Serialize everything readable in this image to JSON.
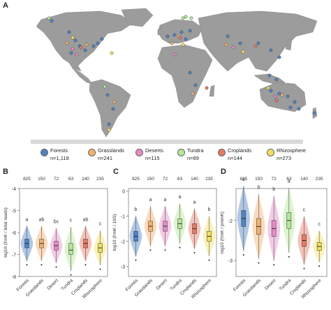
{
  "panels": {
    "A": "A",
    "B": "B",
    "C": "C",
    "D": "D"
  },
  "legend": [
    {
      "name": "Forests",
      "n": "n=1,118",
      "color": "#4f83c3"
    },
    {
      "name": "Grasslands",
      "n": "n=241",
      "color": "#f2b06e"
    },
    {
      "name": "Deserts",
      "n": "n=115",
      "color": "#e48cc6"
    },
    {
      "name": "Tundra",
      "n": "n=89",
      "color": "#b5e69a"
    },
    {
      "name": "Croplands",
      "n": "n=144",
      "color": "#e67a67"
    },
    {
      "name": "Rhizosphere",
      "n": "n=273",
      "color": "#f3df5e"
    }
  ],
  "chart_data": [
    {
      "type": "box",
      "panel": "B",
      "ylabel": "log10 (frmK / total reads)",
      "ylim": [
        -8,
        -4
      ],
      "yticks": [
        -8,
        -7,
        -6,
        -5,
        -4
      ],
      "categories": [
        "Forests",
        "Grasslands",
        "Desert",
        "Tundra",
        "Croplands",
        "Rhizosphere"
      ],
      "counts": [
        "825",
        "150",
        "72",
        "63",
        "140",
        "235"
      ],
      "letters": [
        "a",
        "ab",
        "bc",
        "c",
        "ab",
        "c"
      ],
      "medians": [
        -6.5,
        -6.5,
        -6.6,
        -6.8,
        -6.5,
        -6.7
      ],
      "q1": [
        -6.7,
        -6.7,
        -6.8,
        -7.0,
        -6.7,
        -6.9
      ],
      "q3": [
        -6.3,
        -6.3,
        -6.4,
        -6.5,
        -6.3,
        -6.5
      ]
    },
    {
      "type": "box",
      "panel": "C",
      "ylabel": "log10 (frmK / 16S)",
      "ylim": [
        -3.4,
        0.1
      ],
      "yticks": [
        -3,
        -2,
        -1,
        0
      ],
      "categories": [
        "Forests",
        "Grasslands",
        "Desert",
        "Tundra",
        "Croplands",
        "Rhizosphere"
      ],
      "counts": [
        "825",
        "150",
        "72",
        "63",
        "140",
        "235"
      ],
      "letters": [
        "b",
        "a",
        "a",
        "a",
        "a",
        "b"
      ],
      "medians": [
        -1.8,
        -1.4,
        -1.4,
        -1.3,
        -1.5,
        -1.8
      ],
      "q1": [
        -2.0,
        -1.6,
        -1.6,
        -1.5,
        -1.7,
        -2.0
      ],
      "q3": [
        -1.6,
        -1.2,
        -1.2,
        -1.1,
        -1.3,
        -1.6
      ]
    },
    {
      "type": "box",
      "panel": "D",
      "ylabel": "log10 (frmK / pmmK)",
      "ylim": [
        -3.4,
        -1.2
      ],
      "yticks": [
        -3,
        -2
      ],
      "categories": [
        "Forests",
        "Grasslands",
        "Desert",
        "Tundra",
        "Croplands",
        "Rhizosphere"
      ],
      "counts": [
        "825",
        "150",
        "72",
        "63",
        "140",
        "235"
      ],
      "letters": [
        "a",
        "b",
        "b",
        "a",
        "c",
        "c"
      ],
      "medians": [
        -1.95,
        -2.15,
        -2.2,
        -2.0,
        -2.5,
        -2.65
      ],
      "q1": [
        -2.15,
        -2.35,
        -2.4,
        -2.2,
        -2.65,
        -2.75
      ],
      "q3": [
        -1.75,
        -1.95,
        -2.0,
        -1.8,
        -2.35,
        -2.55
      ]
    }
  ]
}
